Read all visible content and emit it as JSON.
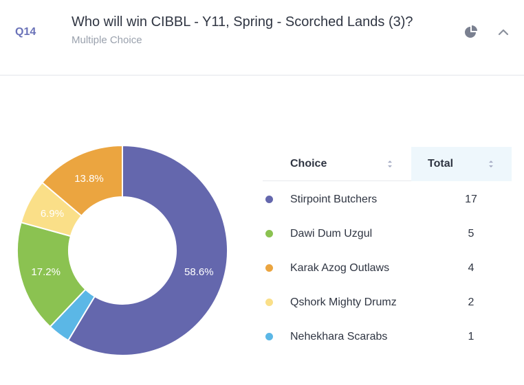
{
  "question": {
    "number": "Q14",
    "title": "Who will win CIBBL - Y11, Spring - Scorched Lands (3)?",
    "type": "Multiple Choice"
  },
  "header_icons": [
    "pie-chart-icon",
    "chevron-up-icon"
  ],
  "table": {
    "col_choice": "Choice",
    "col_total": "Total"
  },
  "chart_data": {
    "type": "pie",
    "donut": true,
    "slices": [
      {
        "label": "Stirpoint Butchers",
        "value": 17,
        "percent_label": "58.6%",
        "color": "#6467ad"
      },
      {
        "label": "Nehekhara Scarabs",
        "value": 1,
        "percent_label": "",
        "color": "#5bb7e6"
      },
      {
        "label": "Dawi Dum Uzgul",
        "value": 5,
        "percent_label": "17.2%",
        "color": "#8bc251"
      },
      {
        "label": "Qshork Mighty Drumz",
        "value": 2,
        "percent_label": "6.9%",
        "color": "#fadf88"
      },
      {
        "label": "Karak Azog Outlaws",
        "value": 4,
        "percent_label": "13.8%",
        "color": "#eba540"
      }
    ],
    "table_order": [
      0,
      2,
      4,
      3,
      1
    ]
  }
}
